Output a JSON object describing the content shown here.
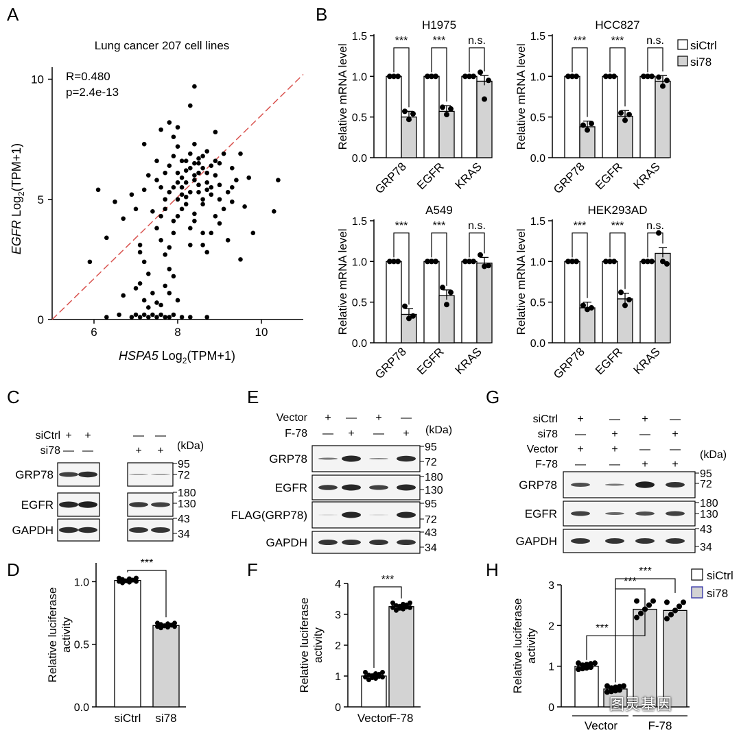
{
  "panel_letters": {
    "A": "A",
    "B": "B",
    "C": "C",
    "D": "D",
    "E": "E",
    "F": "F",
    "G": "G",
    "H": "H"
  },
  "panel_a": {
    "title": "Lung cancer 207 cell lines",
    "r_text": "R=0.480",
    "p_text": "p=2.4e-13",
    "xlabel_gene": "HSPA5",
    "ylabel_gene": "EGFR",
    "label_log": "Log",
    "label_sub": "2",
    "label_unit": "(TPM+1)",
    "xticks": [
      "6",
      "8",
      "10"
    ],
    "yticks": [
      "0",
      "5",
      "10"
    ]
  },
  "panel_b": {
    "ylabel": "Relative mRNA level",
    "yticks": [
      "0.0",
      "0.5",
      "1.0",
      "1.5"
    ],
    "genes": [
      "GRP78",
      "EGFR",
      "KRAS"
    ],
    "legend": [
      "siCtrl",
      "si78"
    ],
    "sig": [
      "***",
      "***",
      "n.s."
    ]
  },
  "blots": {
    "kda": "(kDa)",
    "C": {
      "rows": [
        "siCtrl",
        "si78"
      ],
      "signs": [
        [
          "+",
          "+",
          "—",
          "—"
        ],
        [
          "—",
          "—",
          "+",
          "+"
        ]
      ],
      "bands": [
        "GRP78",
        "EGFR",
        "GAPDH"
      ],
      "markers": [
        "95",
        "72",
        "180",
        "130",
        "43",
        "34"
      ]
    },
    "E": {
      "rows": [
        "Vector",
        "F-78"
      ],
      "signs": [
        [
          "+",
          "—",
          "+",
          "—"
        ],
        [
          "—",
          "+",
          "—",
          "+"
        ]
      ],
      "bands": [
        "GRP78",
        "EGFR",
        "FLAG(GRP78)",
        "GAPDH"
      ],
      "markers": [
        "95",
        "72",
        "180",
        "130",
        "95",
        "72",
        "43",
        "34"
      ]
    },
    "G": {
      "rows": [
        "siCtrl",
        "si78",
        "Vector",
        "F-78"
      ],
      "signs": [
        [
          "+",
          "—",
          "+",
          "—"
        ],
        [
          "—",
          "+",
          "—",
          "+"
        ],
        [
          "+",
          "+",
          "—",
          "—"
        ],
        [
          "—",
          "—",
          "+",
          "+"
        ]
      ],
      "bands": [
        "GRP78",
        "EGFR",
        "GAPDH"
      ],
      "markers": [
        "95",
        "72",
        "180",
        "130",
        "43",
        "34"
      ]
    }
  },
  "panel_d": {
    "ylabel_1": "Relative luciferase",
    "ylabel_2": "activity",
    "yticks": [
      "0.0",
      "0.5",
      "1.0"
    ],
    "categories": [
      "siCtrl",
      "si78"
    ],
    "sig": "***"
  },
  "panel_f": {
    "ylabel_1": "Relative luciferase",
    "ylabel_2": "activity",
    "yticks": [
      "0",
      "1",
      "2",
      "3",
      "4"
    ],
    "categories": [
      "Vector",
      "F-78"
    ],
    "sig": "***"
  },
  "panel_h": {
    "ylabel_1": "Relative luciferase",
    "ylabel_2": "activity",
    "yticks": [
      "0",
      "1",
      "2",
      "3"
    ],
    "groups": [
      "Vector",
      "F-78"
    ],
    "legend": [
      "siCtrl",
      "si78"
    ],
    "sig": [
      "***",
      "***",
      "***"
    ]
  },
  "watermark": "图灵基因",
  "colors": {
    "bar_si": "#d3d3d3",
    "bar_ctrl": "#ffffff",
    "diag": "#d9534f",
    "legend_si78_edge": "#3a3aa8"
  },
  "chart_data": [
    {
      "type": "scatter",
      "panel": "A",
      "title": "Lung cancer 207 cell lines",
      "xlabel": "HSPA5 Log2(TPM+1)",
      "ylabel": "EGFR Log2(TPM+1)",
      "xlim": [
        5,
        11
      ],
      "ylim": [
        0,
        10.5
      ],
      "points": [
        [
          6.1,
          5.4
        ],
        [
          6.3,
          3.4
        ],
        [
          5.9,
          2.4
        ],
        [
          6.5,
          4.9
        ],
        [
          6.7,
          4.2
        ],
        [
          6.7,
          1.0
        ],
        [
          6.3,
          0.1
        ],
        [
          6.6,
          0.2
        ],
        [
          6.9,
          5.2
        ],
        [
          7.0,
          4.6
        ],
        [
          7.1,
          3.1
        ],
        [
          7.1,
          2.8
        ],
        [
          7.2,
          2.4
        ],
        [
          7.3,
          1.9
        ],
        [
          7.1,
          1.5
        ],
        [
          7.0,
          1.3
        ],
        [
          7.4,
          1.1
        ],
        [
          7.2,
          0.8
        ],
        [
          7.5,
          0.7
        ],
        [
          7.3,
          0.5
        ],
        [
          6.9,
          0.1
        ],
        [
          7.0,
          0.2
        ],
        [
          7.1,
          0.1
        ],
        [
          7.2,
          0.2
        ],
        [
          7.3,
          0.1
        ],
        [
          7.4,
          0.2
        ],
        [
          7.5,
          0.1
        ],
        [
          7.6,
          0.2
        ],
        [
          7.7,
          0.1
        ],
        [
          7.8,
          0.1
        ],
        [
          7.9,
          0.2
        ],
        [
          8.1,
          0.1
        ],
        [
          8.3,
          0.1
        ],
        [
          8.7,
          0.1
        ],
        [
          7.4,
          4.5
        ],
        [
          7.5,
          3.8
        ],
        [
          7.6,
          4.3
        ],
        [
          7.6,
          3.3
        ],
        [
          7.7,
          5.0
        ],
        [
          7.8,
          5.3
        ],
        [
          7.6,
          5.5
        ],
        [
          7.5,
          5.8
        ],
        [
          7.7,
          6.1
        ],
        [
          7.8,
          6.4
        ],
        [
          7.9,
          6.8
        ],
        [
          8.0,
          7.2
        ],
        [
          7.9,
          7.6
        ],
        [
          8.0,
          8.0
        ],
        [
          7.8,
          8.2
        ],
        [
          8.4,
          9.7
        ],
        [
          8.3,
          8.9
        ],
        [
          8.0,
          5.0
        ],
        [
          8.1,
          5.5
        ],
        [
          8.1,
          5.9
        ],
        [
          8.2,
          6.2
        ],
        [
          8.2,
          6.6
        ],
        [
          8.3,
          6.9
        ],
        [
          8.4,
          6.5
        ],
        [
          8.4,
          6.0
        ],
        [
          8.5,
          5.6
        ],
        [
          8.5,
          5.3
        ],
        [
          8.6,
          6.3
        ],
        [
          8.6,
          6.8
        ],
        [
          8.7,
          6.1
        ],
        [
          8.7,
          5.7
        ],
        [
          8.8,
          5.2
        ],
        [
          8.8,
          6.4
        ],
        [
          8.9,
          6.0
        ],
        [
          9.0,
          5.6
        ],
        [
          9.0,
          6.5
        ],
        [
          9.2,
          5.3
        ],
        [
          9.3,
          6.3
        ],
        [
          9.4,
          5.8
        ],
        [
          9.7,
          5.9
        ],
        [
          9.1,
          4.6
        ],
        [
          9.0,
          4.0
        ],
        [
          8.8,
          3.6
        ],
        [
          9.2,
          3.3
        ],
        [
          8.6,
          3.1
        ],
        [
          8.4,
          4.4
        ],
        [
          8.2,
          4.8
        ],
        [
          8.0,
          4.3
        ],
        [
          7.9,
          3.6
        ],
        [
          7.8,
          3.0
        ],
        [
          7.7,
          2.7
        ],
        [
          7.8,
          2.1
        ],
        [
          7.9,
          1.8
        ],
        [
          7.7,
          1.4
        ],
        [
          7.8,
          1.1
        ],
        [
          8.0,
          0.8
        ],
        [
          7.6,
          0.6
        ],
        [
          9.8,
          3.6
        ],
        [
          9.5,
          2.5
        ],
        [
          10.3,
          4.5
        ],
        [
          10.4,
          5.8
        ],
        [
          8.5,
          6.7
        ],
        [
          8.3,
          5.3
        ],
        [
          8.6,
          4.8
        ],
        [
          8.9,
          4.3
        ],
        [
          9.3,
          4.9
        ],
        [
          9.5,
          6.9
        ],
        [
          9.1,
          6.9
        ],
        [
          8.7,
          7.0
        ],
        [
          8.4,
          7.3
        ],
        [
          8.1,
          6.6
        ],
        [
          8.0,
          6.1
        ],
        [
          7.7,
          4.6
        ],
        [
          8.3,
          3.8
        ],
        [
          8.7,
          2.8
        ],
        [
          9.0,
          5.0
        ],
        [
          8.8,
          5.5
        ],
        [
          8.6,
          5.0
        ],
        [
          8.4,
          5.8
        ],
        [
          8.2,
          5.7
        ],
        [
          8.1,
          4.6
        ],
        [
          7.9,
          4.1
        ],
        [
          7.5,
          6.6
        ],
        [
          7.3,
          6.0
        ],
        [
          7.2,
          5.4
        ],
        [
          7.2,
          7.3
        ],
        [
          7.6,
          7.9
        ],
        [
          8.9,
          7.8
        ],
        [
          8.6,
          3.6
        ],
        [
          8.3,
          3.1
        ],
        [
          9.3,
          5.5
        ],
        [
          9.6,
          4.7
        ],
        [
          8.2,
          5.1
        ],
        [
          8.5,
          6.1
        ],
        [
          8.9,
          6.6
        ],
        [
          8.5,
          6.5
        ],
        [
          7.9,
          5.5
        ],
        [
          8.1,
          5.2
        ],
        [
          8.3,
          6.3
        ],
        [
          8.7,
          5.4
        ],
        [
          8.0,
          5.7
        ],
        [
          8.4,
          4.1
        ]
      ]
    },
    {
      "type": "bar",
      "panel": "B",
      "title": "H1975",
      "categories": [
        "GRP78",
        "EGFR",
        "KRAS"
      ],
      "series": [
        {
          "name": "siCtrl",
          "values": [
            1.0,
            1.0,
            1.0
          ]
        },
        {
          "name": "si78",
          "values": [
            0.5,
            0.57,
            0.94
          ]
        }
      ],
      "ylim": [
        0,
        1.5
      ]
    },
    {
      "type": "bar",
      "panel": "B",
      "title": "HCC827",
      "categories": [
        "GRP78",
        "EGFR",
        "KRAS"
      ],
      "series": [
        {
          "name": "siCtrl",
          "values": [
            1.0,
            1.0,
            1.0
          ]
        },
        {
          "name": "si78",
          "values": [
            0.38,
            0.51,
            0.94
          ]
        }
      ],
      "ylim": [
        0,
        1.5
      ]
    },
    {
      "type": "bar",
      "panel": "B",
      "title": "A549",
      "categories": [
        "GRP78",
        "EGFR",
        "KRAS"
      ],
      "series": [
        {
          "name": "siCtrl",
          "values": [
            1.0,
            1.0,
            1.0
          ]
        },
        {
          "name": "si78",
          "values": [
            0.35,
            0.58,
            0.98
          ]
        }
      ],
      "ylim": [
        0,
        1.5
      ]
    },
    {
      "type": "bar",
      "panel": "B",
      "title": "HEK293AD",
      "categories": [
        "GRP78",
        "EGFR",
        "KRAS"
      ],
      "series": [
        {
          "name": "siCtrl",
          "values": [
            1.0,
            1.0,
            1.0
          ]
        },
        {
          "name": "si78",
          "values": [
            0.43,
            0.54,
            1.1
          ]
        }
      ],
      "ylim": [
        0,
        1.5
      ]
    },
    {
      "type": "bar",
      "panel": "D",
      "categories": [
        "siCtrl",
        "si78"
      ],
      "values": [
        1.01,
        0.65
      ],
      "ylim": [
        0,
        1.15
      ]
    },
    {
      "type": "bar",
      "panel": "F",
      "categories": [
        "Vector",
        "F-78"
      ],
      "values": [
        1.0,
        3.25
      ],
      "ylim": [
        0,
        4
      ]
    },
    {
      "type": "bar",
      "panel": "H",
      "categories": [
        "Vector",
        "F-78"
      ],
      "series": [
        {
          "name": "siCtrl",
          "values": [
            1.0,
            2.4
          ]
        },
        {
          "name": "si78",
          "values": [
            0.44,
            2.37
          ]
        }
      ],
      "ylim": [
        0,
        3
      ]
    }
  ]
}
